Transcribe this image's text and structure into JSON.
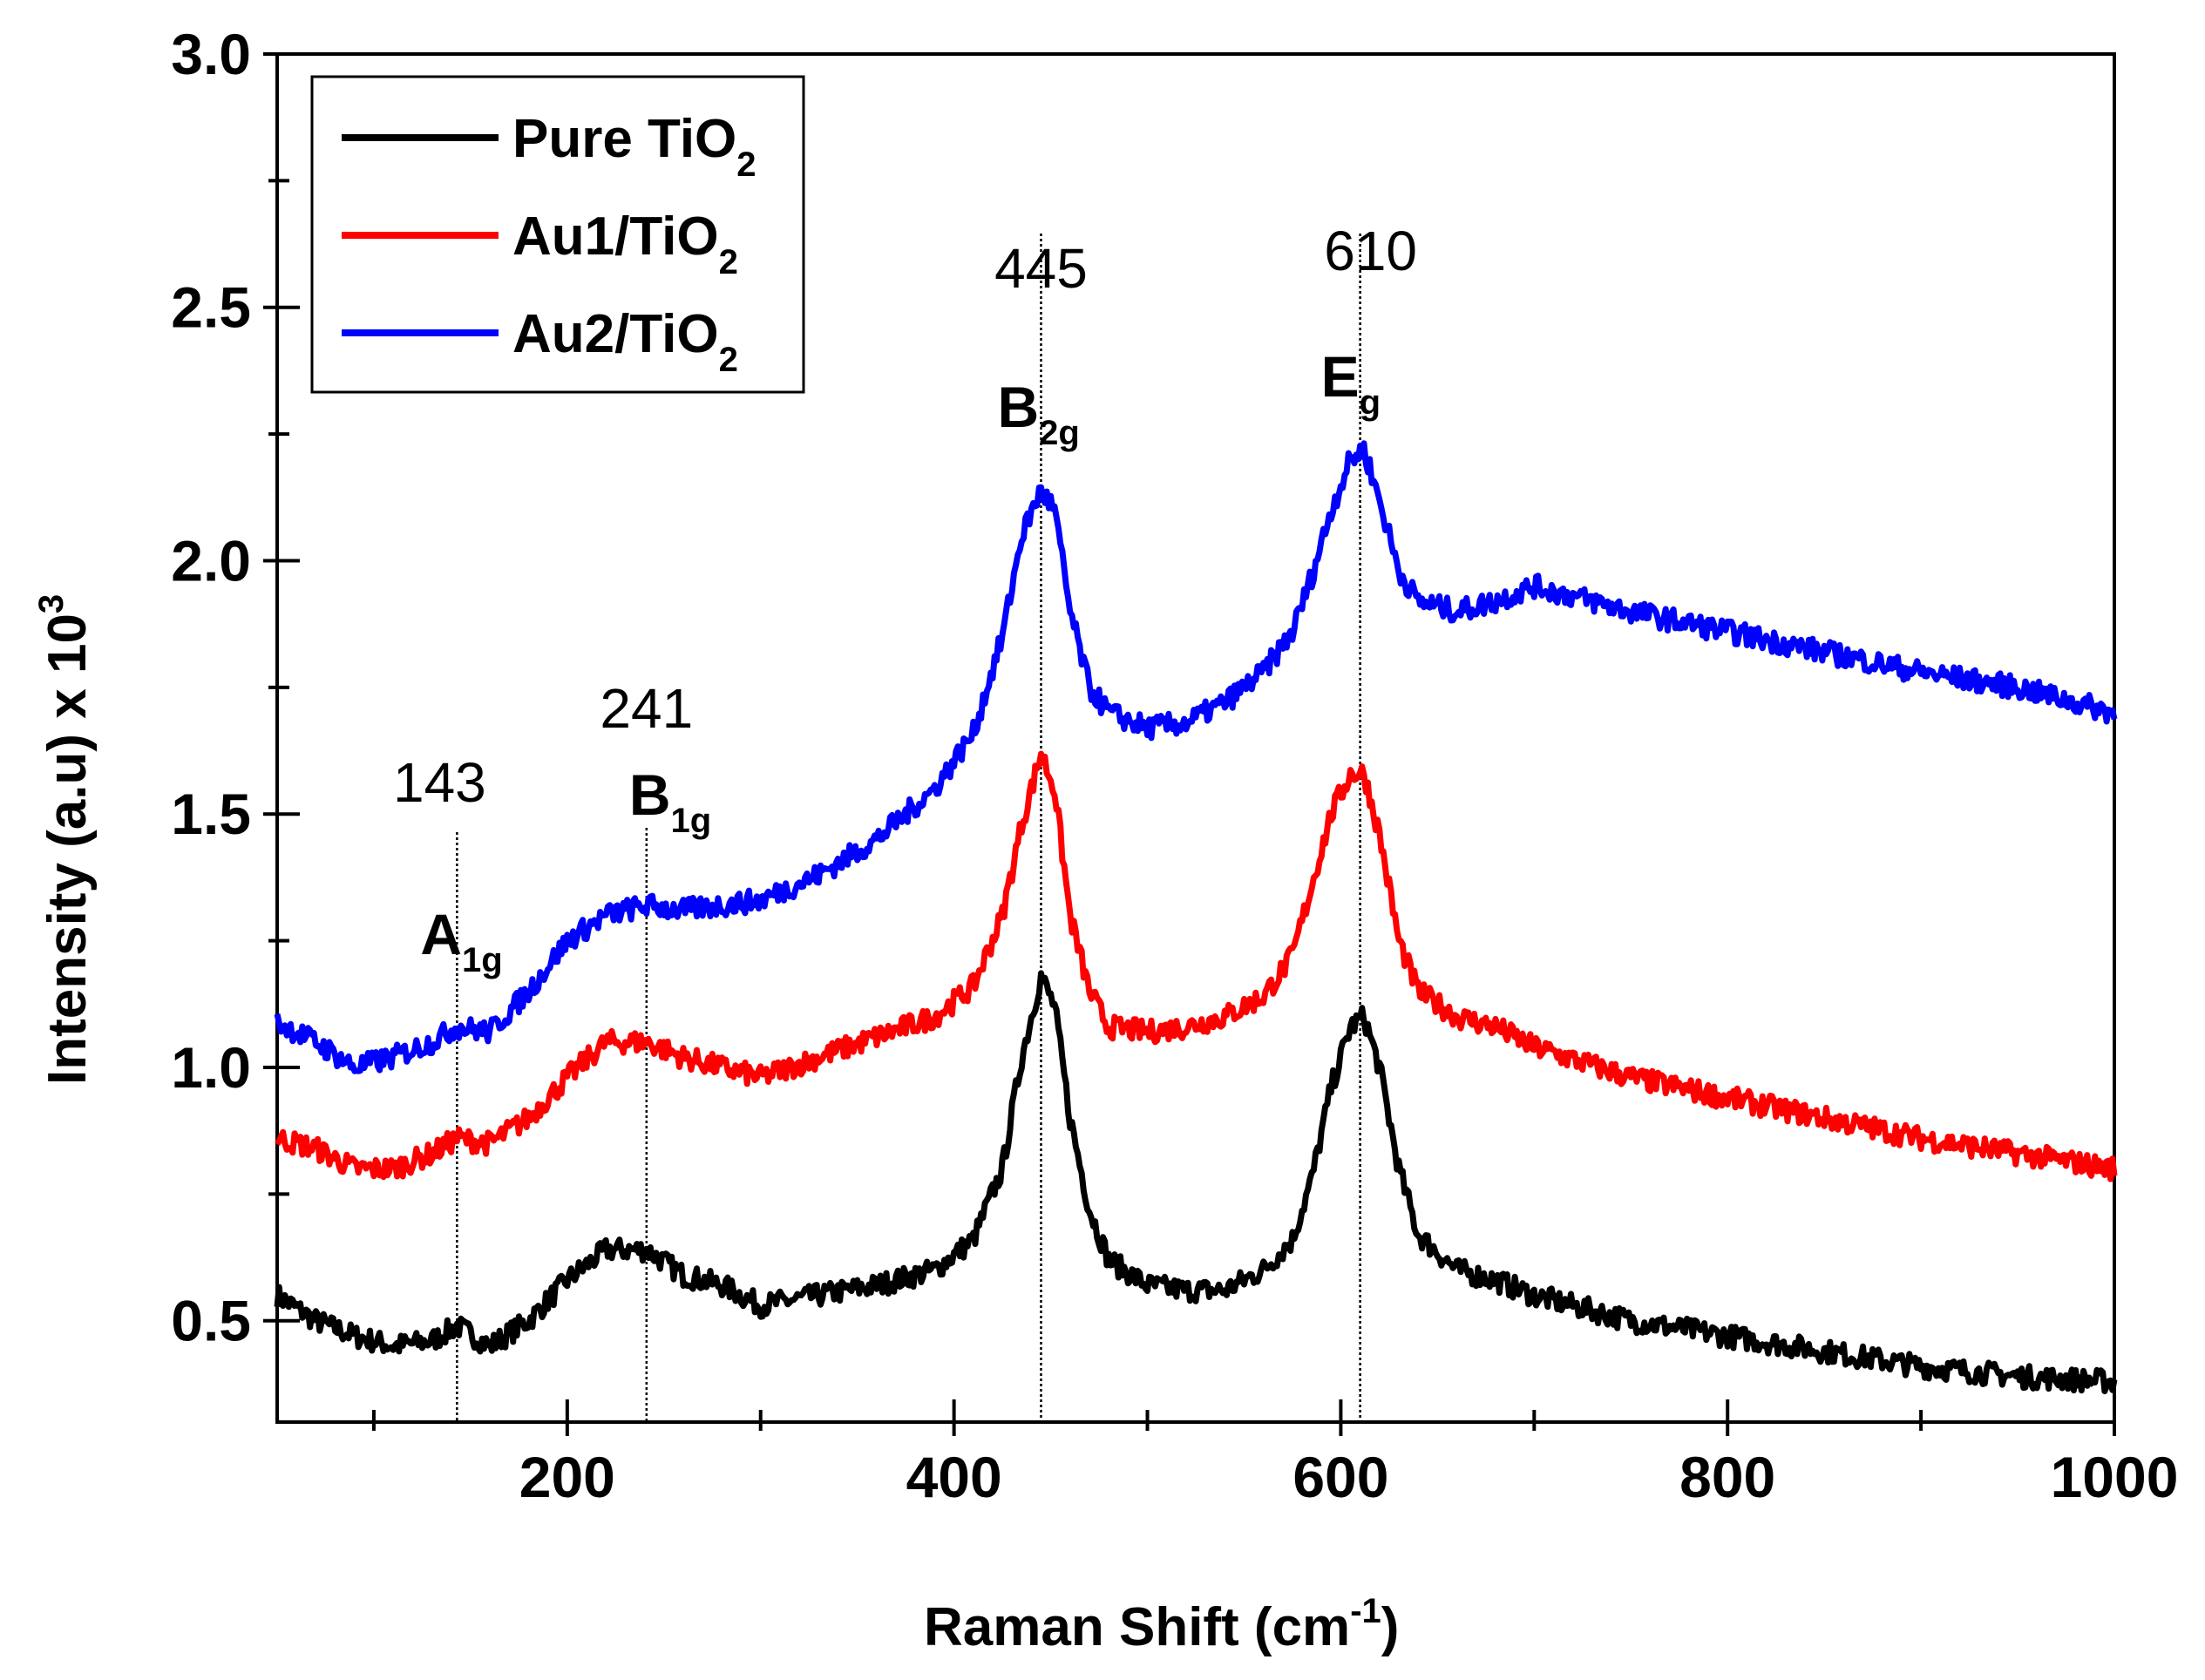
{
  "chart_data": {
    "type": "line",
    "title": "",
    "xlabel": "Raman Shift (cm",
    "xlabel_sup": "-1",
    "xlabel_tail": ")",
    "ylabel": "Intensity (a.u)  x 10",
    "ylabel_sup": "3",
    "xlim": [
      50,
      1000
    ],
    "ylim": [
      0.3,
      3.0
    ],
    "x_ticks": [
      200,
      400,
      600,
      800,
      1000
    ],
    "x_tick_labels": [
      "200",
      "400",
      "600",
      "800",
      "1000"
    ],
    "y_ticks": [
      0.5,
      1.0,
      1.5,
      2.0,
      2.5,
      3.0
    ],
    "y_tick_labels": [
      "0.5",
      "1.0",
      "1.5",
      "2.0",
      "2.5",
      "3.0"
    ],
    "grid": false,
    "legend_position": "top-left",
    "series": [
      {
        "name": "Pure TiO",
        "name_sub": "2",
        "color": "#000000",
        "x": [
          50,
          70,
          90,
          110,
          130,
          143,
          160,
          180,
          200,
          220,
          241,
          260,
          280,
          300,
          330,
          360,
          390,
          410,
          425,
          435,
          445,
          452,
          460,
          470,
          480,
          500,
          520,
          540,
          560,
          575,
          585,
          595,
          605,
          612,
          620,
          630,
          640,
          660,
          680,
          700,
          750,
          800,
          850,
          900,
          950,
          1000
        ],
        "y": [
          0.55,
          0.5,
          0.47,
          0.45,
          0.46,
          0.49,
          0.45,
          0.5,
          0.58,
          0.64,
          0.64,
          0.59,
          0.57,
          0.53,
          0.55,
          0.57,
          0.6,
          0.66,
          0.8,
          1.02,
          1.18,
          1.12,
          0.9,
          0.72,
          0.62,
          0.57,
          0.56,
          0.56,
          0.6,
          0.66,
          0.78,
          0.96,
          1.08,
          1.1,
          1.0,
          0.8,
          0.67,
          0.6,
          0.58,
          0.55,
          0.5,
          0.47,
          0.44,
          0.41,
          0.39,
          0.38
        ]
      },
      {
        "name": "Au1/TiO",
        "name_sub": "2",
        "color": "#ff0000",
        "x": [
          50,
          70,
          90,
          110,
          130,
          143,
          160,
          180,
          200,
          220,
          241,
          260,
          280,
          300,
          330,
          360,
          390,
          410,
          425,
          435,
          445,
          452,
          460,
          470,
          480,
          500,
          520,
          540,
          560,
          575,
          585,
          595,
          605,
          612,
          620,
          630,
          640,
          660,
          680,
          700,
          750,
          800,
          850,
          900,
          950,
          1000
        ],
        "y": [
          0.86,
          0.84,
          0.8,
          0.8,
          0.83,
          0.86,
          0.85,
          0.9,
          0.98,
          1.05,
          1.05,
          1.02,
          1.0,
          0.98,
          1.02,
          1.06,
          1.1,
          1.16,
          1.3,
          1.48,
          1.62,
          1.55,
          1.3,
          1.15,
          1.08,
          1.07,
          1.08,
          1.1,
          1.14,
          1.22,
          1.36,
          1.5,
          1.58,
          1.58,
          1.46,
          1.25,
          1.15,
          1.1,
          1.08,
          1.04,
          0.98,
          0.94,
          0.9,
          0.86,
          0.83,
          0.8
        ]
      },
      {
        "name": "Au2/TiO",
        "name_sub": "2",
        "color": "#0000ff",
        "x": [
          50,
          70,
          90,
          110,
          130,
          143,
          160,
          180,
          200,
          220,
          241,
          260,
          280,
          300,
          330,
          360,
          390,
          410,
          425,
          435,
          445,
          452,
          460,
          470,
          480,
          500,
          520,
          540,
          560,
          575,
          585,
          595,
          605,
          612,
          620,
          630,
          640,
          660,
          680,
          700,
          750,
          800,
          850,
          900,
          950,
          1000
        ],
        "y": [
          1.09,
          1.05,
          1.0,
          1.02,
          1.05,
          1.08,
          1.07,
          1.15,
          1.25,
          1.3,
          1.32,
          1.31,
          1.32,
          1.33,
          1.38,
          1.45,
          1.55,
          1.66,
          1.85,
          2.05,
          2.14,
          2.1,
          1.9,
          1.75,
          1.7,
          1.67,
          1.68,
          1.72,
          1.78,
          1.86,
          1.97,
          2.1,
          2.2,
          2.22,
          2.12,
          1.98,
          1.92,
          1.9,
          1.92,
          1.95,
          1.9,
          1.86,
          1.82,
          1.78,
          1.75,
          1.7
        ]
      }
    ],
    "annotations": [
      {
        "x": 143,
        "value_label": "143",
        "mode": "A",
        "mode_sub": "1g"
      },
      {
        "x": 241,
        "value_label": "241",
        "mode": "B",
        "mode_sub": "1g"
      },
      {
        "x": 445,
        "value_label": "445",
        "mode": "B",
        "mode_sub": "2g"
      },
      {
        "x": 610,
        "value_label": "610",
        "mode": "E",
        "mode_sub": "g"
      }
    ]
  }
}
